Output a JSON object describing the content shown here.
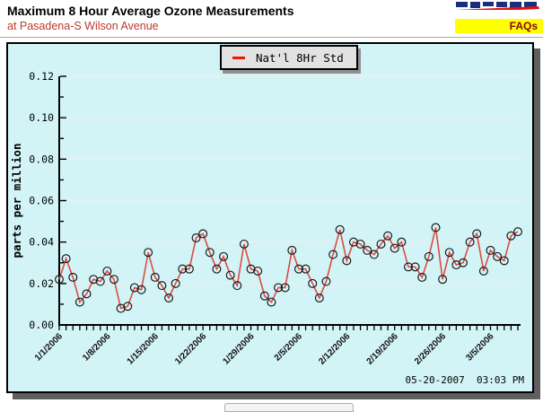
{
  "header": {
    "title": "Maximum 8 Hour Average Ozone Measurements",
    "subtitle": "at Pasadena-S Wilson Avenue",
    "faqs_label": "FAQs",
    "logo": "aqmd-logo-partial"
  },
  "colors": {
    "chart_background": "#d3f4f7",
    "line": "#dc4a42",
    "marker_outline": "#1a1a1a",
    "legend_dash": "#ee1509",
    "gridline": "#f2eceb",
    "subtitle_red": "#bb3a2e",
    "faqs_background": "#ffff00",
    "faqs_text": "#8b0000",
    "axis": "#000000"
  },
  "chart_data": {
    "type": "line",
    "title": "",
    "xlabel": "",
    "ylabel": "parts per million",
    "ylim": [
      0,
      0.12
    ],
    "y_major_step": 0.02,
    "y_minor_step": 0.01,
    "y_tick_labels": [
      "0.00",
      "0.02",
      "0.04",
      "0.06",
      "0.08",
      "0.10",
      "0.12"
    ],
    "grid": "horizontal",
    "legend_position": "top-center",
    "x_label_every": 7,
    "x_tick_labels_shown": [
      "1/1/2006",
      "1/8/2006",
      "1/15/2006",
      "1/22/2006",
      "1/29/2006",
      "2/5/2006",
      "2/12/2006",
      "2/19/2006",
      "2/26/2006",
      "3/5/2006"
    ],
    "x": [
      "1/1/2006",
      "1/2/2006",
      "1/3/2006",
      "1/4/2006",
      "1/5/2006",
      "1/6/2006",
      "1/7/2006",
      "1/8/2006",
      "1/9/2006",
      "1/10/2006",
      "1/11/2006",
      "1/12/2006",
      "1/13/2006",
      "1/14/2006",
      "1/15/2006",
      "1/16/2006",
      "1/17/2006",
      "1/18/2006",
      "1/19/2006",
      "1/20/2006",
      "1/21/2006",
      "1/22/2006",
      "1/23/2006",
      "1/24/2006",
      "1/25/2006",
      "1/26/2006",
      "1/27/2006",
      "1/28/2006",
      "1/29/2006",
      "1/30/2006",
      "1/31/2006",
      "2/1/2006",
      "2/2/2006",
      "2/3/2006",
      "2/4/2006",
      "2/5/2006",
      "2/6/2006",
      "2/7/2006",
      "2/8/2006",
      "2/9/2006",
      "2/10/2006",
      "2/11/2006",
      "2/12/2006",
      "2/13/2006",
      "2/14/2006",
      "2/15/2006",
      "2/16/2006",
      "2/17/2006",
      "2/18/2006",
      "2/19/2006",
      "2/20/2006",
      "2/21/2006",
      "2/22/2006",
      "2/23/2006",
      "2/24/2006",
      "2/25/2006",
      "2/26/2006",
      "2/27/2006",
      "2/28/2006",
      "3/1/2006",
      "3/2/2006",
      "3/3/2006",
      "3/4/2006",
      "3/5/2006",
      "3/6/2006",
      "3/7/2006",
      "3/8/2006",
      "3/9/2006"
    ],
    "series": [
      {
        "name": "Nat'l 8Hr Std",
        "values": [
          0.022,
          0.032,
          0.023,
          0.011,
          0.015,
          0.022,
          0.021,
          0.026,
          0.022,
          0.008,
          0.009,
          0.018,
          0.017,
          0.035,
          0.023,
          0.019,
          0.013,
          0.02,
          0.027,
          0.027,
          0.042,
          0.044,
          0.035,
          0.027,
          0.033,
          0.024,
          0.019,
          0.039,
          0.027,
          0.026,
          0.014,
          0.011,
          0.018,
          0.018,
          0.036,
          0.027,
          0.027,
          0.02,
          0.013,
          0.021,
          0.034,
          0.046,
          0.031,
          0.04,
          0.039,
          0.036,
          0.034,
          0.039,
          0.043,
          0.037,
          0.04,
          0.028,
          0.028,
          0.023,
          0.033,
          0.047,
          0.022,
          0.035,
          0.029,
          0.03,
          0.04,
          0.044,
          0.026,
          0.036,
          0.033,
          0.031,
          0.043,
          0.045
        ]
      }
    ]
  },
  "footer": {
    "timestamp": "05-20-2007  03:03 PM"
  }
}
